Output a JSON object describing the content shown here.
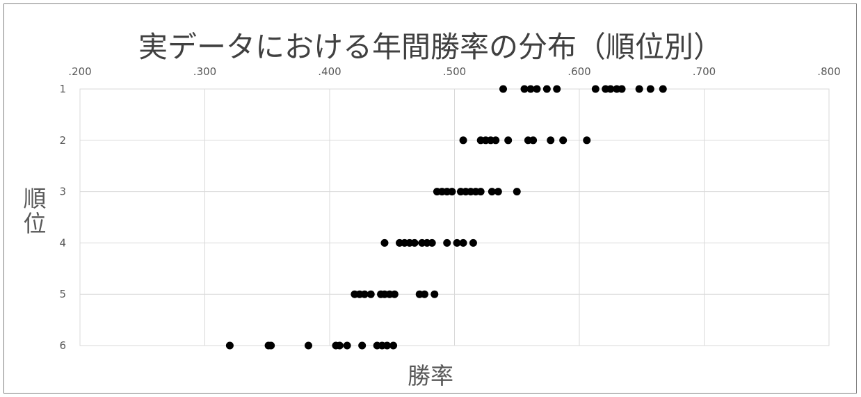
{
  "chart_data": {
    "type": "scatter",
    "title": "実データにおける年間勝率の分布（順位別）",
    "xlabel": "勝率",
    "ylabel": "順位",
    "xlim": [
      0.2,
      0.8
    ],
    "ylim": [
      1,
      6
    ],
    "y_reversed": true,
    "x_axis_position": "top",
    "x_ticks": [
      ".200",
      ".300",
      ".400",
      ".500",
      ".600",
      ".700",
      ".800"
    ],
    "y_ticks": [
      "1",
      "2",
      "3",
      "4",
      "5",
      "6"
    ],
    "grid": true,
    "marker_color": "#000000",
    "series": [
      {
        "values_by_rank": [
          {
            "rank": 1,
            "x": [
              0.539,
              0.556,
              0.561,
              0.566,
              0.574,
              0.582,
              0.613,
              0.621,
              0.625,
              0.63,
              0.634,
              0.648,
              0.657,
              0.667
            ]
          },
          {
            "rank": 2,
            "x": [
              0.507,
              0.521,
              0.525,
              0.529,
              0.533,
              0.543,
              0.559,
              0.563,
              0.577,
              0.587,
              0.606
            ]
          },
          {
            "rank": 3,
            "x": [
              0.486,
              0.49,
              0.494,
              0.498,
              0.505,
              0.509,
              0.513,
              0.517,
              0.521,
              0.53,
              0.535,
              0.55
            ]
          },
          {
            "rank": 4,
            "x": [
              0.444,
              0.456,
              0.46,
              0.464,
              0.468,
              0.474,
              0.478,
              0.482,
              0.494,
              0.502,
              0.507,
              0.515
            ]
          },
          {
            "rank": 5,
            "x": [
              0.42,
              0.424,
              0.428,
              0.433,
              0.441,
              0.444,
              0.448,
              0.452,
              0.472,
              0.476,
              0.484
            ]
          },
          {
            "rank": 6,
            "x": [
              0.32,
              0.351,
              0.353,
              0.383,
              0.405,
              0.408,
              0.414,
              0.426,
              0.438,
              0.442,
              0.446,
              0.451
            ]
          }
        ]
      }
    ]
  }
}
